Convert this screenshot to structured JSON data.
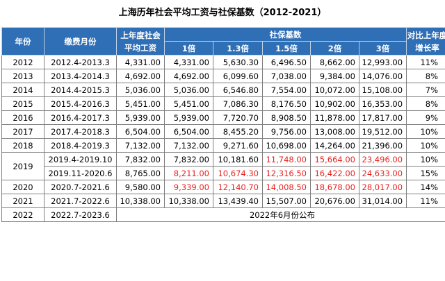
{
  "title": "上海历年社会平均工资与社保基数（2012-2021）",
  "headers": {
    "year": "年份",
    "months": "缴费月份",
    "avg_wage": "上年度社会平均工资",
    "base_group": "社保基数",
    "multipliers": [
      "1倍",
      "1.3倍",
      "1.5倍",
      "2倍",
      "3倍"
    ],
    "growth": "对比上年度增长率"
  },
  "rows": [
    {
      "year": "2012",
      "months": "2012.4-2013.3",
      "wage": "4,331.00",
      "b1": "4,331.00",
      "b13": "5,630.30",
      "b15": "6,496.50",
      "b2": "8,662.00",
      "b3": "12,993.00",
      "growth": "11%"
    },
    {
      "year": "2013",
      "months": "2013.4-2014.3",
      "wage": "4,692.00",
      "b1": "4,692.00",
      "b13": "6,099.60",
      "b15": "7,038.00",
      "b2": "9,384.00",
      "b3": "14,076.00",
      "growth": "8%"
    },
    {
      "year": "2014",
      "months": "2014.4-2015.3",
      "wage": "5,036.00",
      "b1": "5,036.00",
      "b13": "6,546.80",
      "b15": "7,554.00",
      "b2": "10,072.00",
      "b3": "15,108.00",
      "growth": "7%"
    },
    {
      "year": "2015",
      "months": "2015.4-2016.3",
      "wage": "5,451.00",
      "b1": "5,451.00",
      "b13": "7,086.30",
      "b15": "8,176.50",
      "b2": "10,902.00",
      "b3": "16,353.00",
      "growth": "8%"
    },
    {
      "year": "2016",
      "months": "2016.4-2017.3",
      "wage": "5,939.00",
      "b1": "5,939.00",
      "b13": "7,720.70",
      "b15": "8,908.50",
      "b2": "11,878.00",
      "b3": "17,817.00",
      "growth": "9%"
    },
    {
      "year": "2017",
      "months": "2017.4-2018.3",
      "wage": "6,504.00",
      "b1": "6,504.00",
      "b13": "8,455.20",
      "b15": "9,756.00",
      "b2": "13,008.00",
      "b3": "19,512.00",
      "growth": "10%"
    },
    {
      "year": "2018",
      "months": "2018.4-2019.3",
      "wage": "7,132.00",
      "b1": "7,132.00",
      "b13": "9,271.60",
      "b15": "10,698.00",
      "b2": "14,264.00",
      "b3": "21,396.00",
      "growth": "10%"
    },
    {
      "year": "2019",
      "months": "2019.4-2019.10",
      "wage": "7,832.00",
      "b1": "7,832.00",
      "b13": "10,181.60",
      "b15": "11,748.00",
      "b2": "15,664.00",
      "b3": "23,496.00",
      "growth": "10%"
    },
    {
      "year": "",
      "months": "2019.11-2020.6",
      "wage": "8,765.00",
      "b1": "8,211.00",
      "b13": "10,674.30",
      "b15": "12,316.50",
      "b2": "16,422.00",
      "b3": "24,633.00",
      "growth": "15%"
    },
    {
      "year": "2020",
      "months": "2020.7-2021.6",
      "wage": "9,580.00",
      "b1": "9,339.00",
      "b13": "12,140.70",
      "b15": "14,008.50",
      "b2": "18,678.00",
      "b3": "28,017.00",
      "growth": "14%"
    },
    {
      "year": "2021",
      "months": "2021.7-2022.6",
      "wage": "10,338.00",
      "b1": "10,338.00",
      "b13": "13,439.40",
      "b15": "15,507.00",
      "b2": "20,676.00",
      "b3": "31,014.00",
      "growth": "11%"
    }
  ],
  "last_row": {
    "year": "2022",
    "months": "2022.7-2023.6",
    "note": "2022年6月份公布"
  },
  "colors": {
    "header_bg": "#2e6fb6",
    "highlight": "#e8231f"
  }
}
